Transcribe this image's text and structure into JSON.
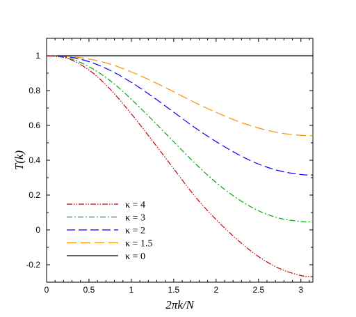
{
  "chart_data": {
    "type": "line",
    "xlabel": "2πk/N",
    "ylabel": "T(k)",
    "xlim": [
      0,
      3.14159
    ],
    "ylim": [
      -0.3,
      1.1
    ],
    "xticks": [
      "0",
      "0.5",
      "1",
      "1.5",
      "2",
      "2.5",
      "3"
    ],
    "yticks": [
      "-0.2",
      "0",
      "0.2",
      "0.4",
      "0.6",
      "0.8",
      "1"
    ],
    "grid": false,
    "legend_position": "bottom-left",
    "series": [
      {
        "name": "κ = 4",
        "color": "#c00000",
        "dash": "dash-dot-dot",
        "x": [
          0,
          0.25,
          0.5,
          0.75,
          1.0,
          1.25,
          1.5,
          1.75,
          2.0,
          2.25,
          2.5,
          2.75,
          3.0,
          3.14159
        ],
        "y": [
          1.0,
          0.984,
          0.918,
          0.808,
          0.666,
          0.511,
          0.351,
          0.193,
          0.059,
          -0.056,
          -0.153,
          -0.222,
          -0.262,
          -0.268
        ]
      },
      {
        "name": "κ = 3",
        "color": "#00aa00",
        "dash": "dash-dot",
        "x": [
          0,
          0.25,
          0.5,
          0.75,
          1.0,
          1.25,
          1.5,
          1.75,
          2.0,
          2.25,
          2.5,
          2.75,
          3.0,
          3.14159
        ],
        "y": [
          1.0,
          0.988,
          0.937,
          0.857,
          0.75,
          0.63,
          0.506,
          0.383,
          0.272,
          0.18,
          0.11,
          0.067,
          0.048,
          0.046
        ]
      },
      {
        "name": "κ = 2",
        "color": "#0000ff",
        "dash": "dash",
        "x": [
          0,
          0.25,
          0.5,
          0.75,
          1.0,
          1.25,
          1.5,
          1.75,
          2.0,
          2.25,
          2.5,
          2.75,
          3.0,
          3.14159
        ],
        "y": [
          1.0,
          0.994,
          0.966,
          0.916,
          0.847,
          0.765,
          0.676,
          0.587,
          0.507,
          0.436,
          0.378,
          0.339,
          0.318,
          0.315
        ]
      },
      {
        "name": "κ = 1.5",
        "color": "#ff8c00",
        "dash": "long-dash",
        "x": [
          0,
          0.25,
          0.5,
          0.75,
          1.0,
          1.25,
          1.5,
          1.75,
          2.0,
          2.25,
          2.5,
          2.75,
          3.0,
          3.14159
        ],
        "y": [
          1.0,
          0.996,
          0.981,
          0.952,
          0.907,
          0.853,
          0.793,
          0.731,
          0.675,
          0.625,
          0.585,
          0.557,
          0.543,
          0.541
        ]
      },
      {
        "name": "κ = 0",
        "color": "#000000",
        "dash": "solid",
        "x": [
          0,
          3.14159
        ],
        "y": [
          1.0,
          1.0
        ]
      }
    ]
  }
}
